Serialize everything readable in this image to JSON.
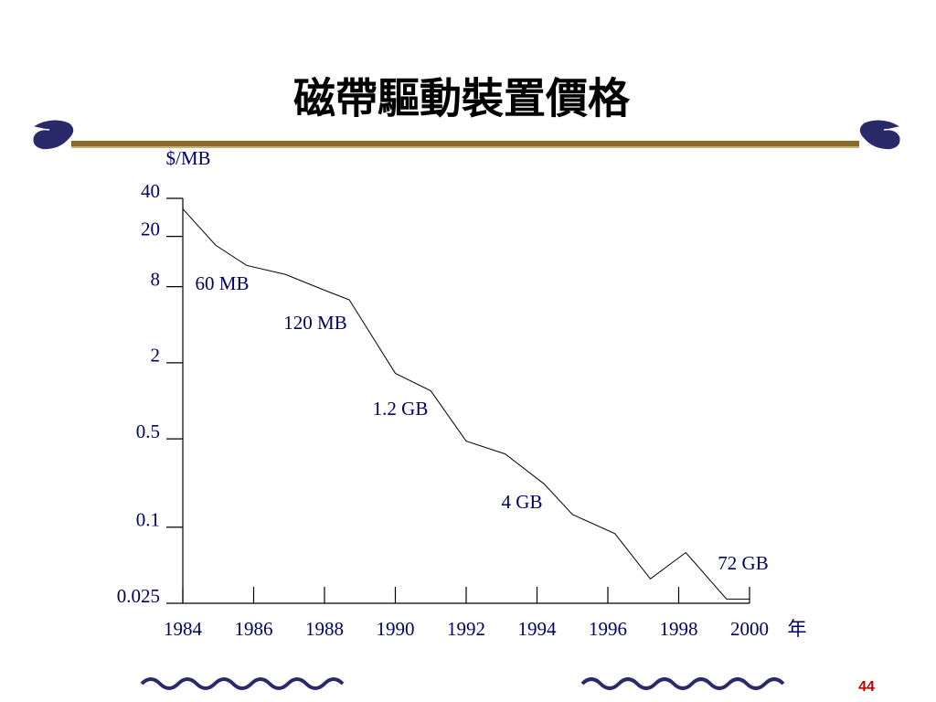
{
  "chart_data": {
    "type": "line",
    "title": "磁帶驅動裝置價格",
    "ylabel": "$/MB",
    "xlabel": "年",
    "log_y": true,
    "x": [
      1984,
      1984.93,
      1985.8,
      1986.9,
      1988,
      1988.7,
      1990,
      1991,
      1992,
      1993.1,
      1994.2,
      1995,
      1996.2,
      1997.2,
      1998.2,
      1999.35,
      2000
    ],
    "series": [
      {
        "name": "$/MB",
        "color": "#000000",
        "values": [
          33,
          17,
          11.8,
          10,
          7.5,
          6.3,
          1.65,
          1.2,
          0.48,
          0.38,
          0.22,
          0.126,
          0.089,
          0.039,
          0.063,
          0.027,
          0.027
        ]
      }
    ],
    "xlim": [
      1984,
      2000
    ],
    "xticks": [
      1984,
      1986,
      1988,
      1990,
      1992,
      1994,
      1996,
      1998,
      2000
    ],
    "ylim": [
      0.025,
      40
    ],
    "yticks": [
      40,
      20,
      8,
      2,
      0.5,
      0.1,
      0.025
    ],
    "annotations": [
      "60 MB",
      "120 MB",
      "1.2 GB",
      "4 GB",
      "72 GB"
    ],
    "page_number": "44"
  }
}
